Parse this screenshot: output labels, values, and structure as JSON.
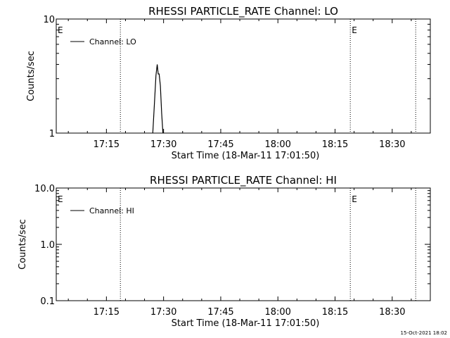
{
  "chart_data": [
    {
      "type": "line",
      "title": "RHESSI PARTICLE_RATE Channel: LO",
      "xlabel": "Start Time (18-Mar-11 17:01:50)",
      "ylabel": "Counts/sec",
      "yscale": "log",
      "ylim": [
        1,
        10
      ],
      "xlim": [
        "17:01:50",
        "18:40:00"
      ],
      "ytick_labels": [
        "1",
        "10"
      ],
      "xtick_labels": [
        "17:15",
        "17:30",
        "17:45",
        "18:00",
        "18:15",
        "18:30"
      ],
      "legend": "top-left",
      "series": [
        {
          "name": "Channel: LO",
          "x": [
            "17:27:10",
            "17:27:40",
            "17:28:00",
            "17:28:20",
            "17:28:35",
            "17:28:50",
            "17:29:10",
            "17:29:30",
            "17:29:50"
          ],
          "y": [
            1.0,
            2.0,
            3.2,
            4.0,
            3.3,
            3.3,
            2.6,
            1.5,
            1.0
          ]
        }
      ],
      "vlines": [
        "17:18:40",
        "18:19:00",
        "18:36:10"
      ],
      "markers": [
        {
          "label": "E",
          "x": "17:01:50"
        },
        {
          "label": "E",
          "x": "18:19:00"
        }
      ]
    },
    {
      "type": "line",
      "title": "RHESSI PARTICLE_RATE Channel: HI",
      "xlabel": "Start Time (18-Mar-11 17:01:50)",
      "ylabel": "Counts/sec",
      "yscale": "log",
      "ylim": [
        0.1,
        10
      ],
      "xlim": [
        "17:01:50",
        "18:40:00"
      ],
      "ytick_labels": [
        "0.1",
        "1.0",
        "10.0"
      ],
      "xtick_labels": [
        "17:15",
        "17:30",
        "17:45",
        "18:00",
        "18:15",
        "18:30"
      ],
      "legend": "top-left",
      "series": [
        {
          "name": "Channel: HI",
          "x": [],
          "y": []
        }
      ],
      "vlines": [
        "17:18:40",
        "18:19:00",
        "18:36:10"
      ],
      "markers": [
        {
          "label": "E",
          "x": "17:01:50"
        },
        {
          "label": "E",
          "x": "18:19:00"
        }
      ]
    }
  ],
  "footer": {
    "timestamp": "15-Oct-2021 18:02"
  }
}
